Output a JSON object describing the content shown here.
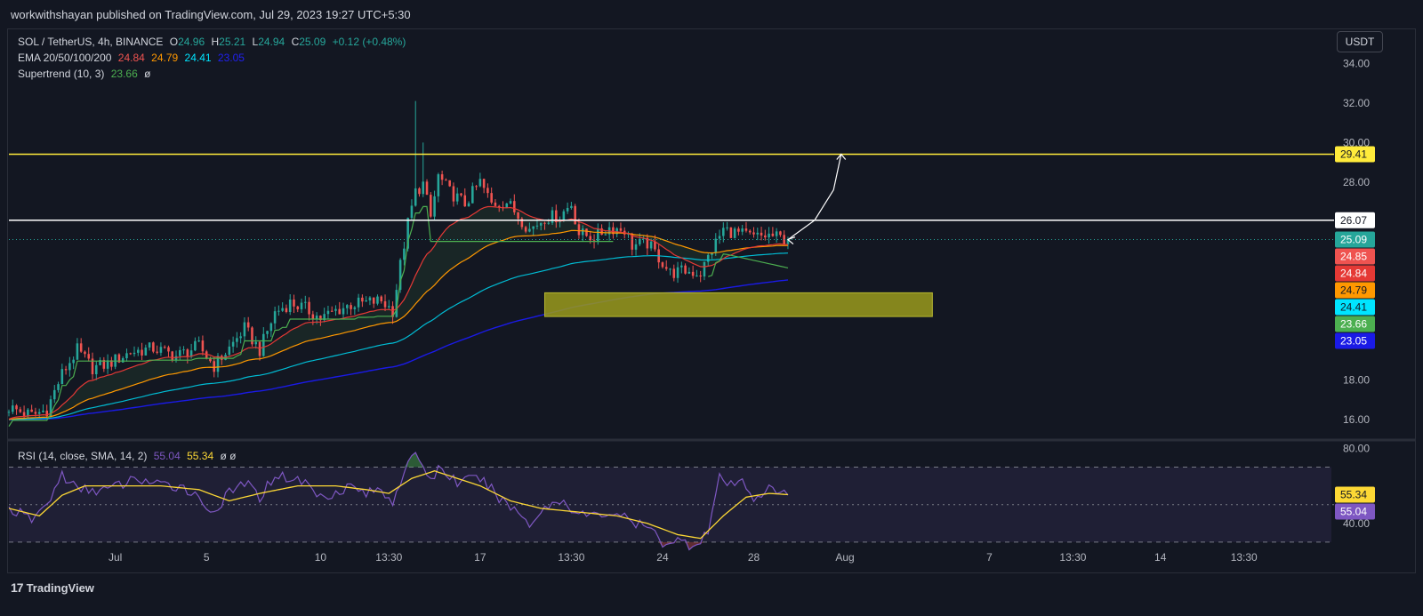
{
  "header": {
    "published": "workwithshayan published on TradingView.com, Jul 29, 2023 19:27 UTC+5:30"
  },
  "legend": {
    "symbol": "SOL / TetherUS, 4h, BINANCE",
    "o_label": "O",
    "o": "24.96",
    "h_label": "H",
    "h": "25.21",
    "l_label": "L",
    "l": "24.94",
    "c_label": "C",
    "c": "25.09",
    "change": "+0.12 (+0.48%)",
    "ema_label": "EMA 20/50/100/200",
    "ema20": "24.84",
    "ema50": "24.79",
    "ema100": "24.41",
    "ema200": "23.05",
    "supertrend_label": "Supertrend (10, 3)",
    "supertrend": "23.66",
    "eye_icon": "ø"
  },
  "rsi_legend": {
    "label": "RSI (14, close, SMA, 14, 2)",
    "rsi": "55.04",
    "sma": "55.34",
    "icons": "ø ø"
  },
  "currency_button": "USDT",
  "footer": {
    "brand": "TradingView",
    "logo_text": "17"
  },
  "colors": {
    "bg": "#131722",
    "up": "#26a69a",
    "down": "#ef5350",
    "ema20": "#e53935",
    "ema50": "#ff9800",
    "ema100": "#00bcd4",
    "ema200": "#1a1ae6",
    "supertrend": "#4caf50",
    "yellow": "#ffeb3b",
    "white": "#ffffff",
    "zone": "#9a9a1c",
    "rsi": "#7e57c2",
    "rsi_sma": "#fdd835"
  },
  "chart_data": [
    {
      "type": "candlestick",
      "symbol": "SOL / TetherUS",
      "interval": "4h",
      "exchange": "BINANCE",
      "ylim": [
        15.0,
        35.5
      ],
      "y_ticks": [
        "16.00",
        "18.00",
        "28.00",
        "30.00",
        "32.00",
        "34.00"
      ],
      "x_ticks": [
        {
          "t": 28,
          "label": "Jul"
        },
        {
          "t": 52,
          "label": "5"
        },
        {
          "t": 82,
          "label": "10"
        },
        {
          "t": 100,
          "label": "13:30"
        },
        {
          "t": 124,
          "label": "17"
        },
        {
          "t": 148,
          "label": "13:30"
        },
        {
          "t": 172,
          "label": "24"
        },
        {
          "t": 196,
          "label": "28"
        },
        {
          "t": 220,
          "label": "Aug"
        },
        {
          "t": 258,
          "label": "7"
        },
        {
          "t": 280,
          "label": "13:30"
        },
        {
          "t": 303,
          "label": "14"
        },
        {
          "t": 325,
          "label": "13:30"
        }
      ],
      "x_range": [
        0,
        348
      ],
      "last_index": 205,
      "price_anchors": [
        [
          0,
          16.6
        ],
        [
          6,
          16.2
        ],
        [
          10,
          16.5
        ],
        [
          14,
          18.3
        ],
        [
          18,
          19.5
        ],
        [
          22,
          18.6
        ],
        [
          26,
          18.8
        ],
        [
          32,
          19.4
        ],
        [
          38,
          19.6
        ],
        [
          44,
          19.2
        ],
        [
          50,
          19.7
        ],
        [
          54,
          18.7
        ],
        [
          58,
          19.6
        ],
        [
          62,
          20.6
        ],
        [
          66,
          19.5
        ],
        [
          70,
          21.4
        ],
        [
          74,
          21.9
        ],
        [
          78,
          21.6
        ],
        [
          82,
          21.1
        ],
        [
          86,
          21.5
        ],
        [
          90,
          21.8
        ],
        [
          94,
          21.9
        ],
        [
          98,
          22.0
        ],
        [
          101,
          21.5
        ],
        [
          103,
          23.8
        ],
        [
          105,
          25.9
        ],
        [
          107,
          27.5
        ],
        [
          109,
          27.9
        ],
        [
          111,
          26.2
        ],
        [
          113,
          28.3
        ],
        [
          116,
          27.5
        ],
        [
          120,
          26.9
        ],
        [
          124,
          28.0
        ],
        [
          127,
          26.9
        ],
        [
          131,
          27.0
        ],
        [
          134,
          26.3
        ],
        [
          137,
          25.6
        ],
        [
          141,
          26.2
        ],
        [
          145,
          26.3
        ],
        [
          148,
          26.9
        ],
        [
          150,
          25.4
        ],
        [
          154,
          25.2
        ],
        [
          158,
          25.7
        ],
        [
          162,
          25.6
        ],
        [
          164,
          24.8
        ],
        [
          168,
          24.9
        ],
        [
          171,
          24.2
        ],
        [
          174,
          23.4
        ],
        [
          178,
          23.5
        ],
        [
          182,
          23.4
        ],
        [
          185,
          24.6
        ],
        [
          188,
          25.6
        ],
        [
          192,
          25.4
        ],
        [
          196,
          25.2
        ],
        [
          200,
          25.3
        ],
        [
          205,
          25.09
        ]
      ],
      "spikes": [
        {
          "index": 107,
          "high": 32.1
        },
        {
          "index": 109,
          "high": 30.0
        }
      ],
      "ema_last": {
        "ema20": 24.84,
        "ema50": 24.79,
        "ema100": 24.41,
        "ema200": 23.05
      },
      "supertrend_last": 23.66,
      "current_price": 25.09,
      "horizontal_lines": [
        {
          "name": "resistance-yellow",
          "price": 29.41,
          "label": "29.41"
        },
        {
          "name": "resistance-white",
          "price": 26.07,
          "label": "26.07"
        }
      ],
      "zone": {
        "price_top": 22.4,
        "price_bottom": 21.2,
        "t_start": 141,
        "t_end": 243
      },
      "projection_arrow": [
        [
          205,
          25.09
        ],
        [
          212,
          26.07
        ],
        [
          217,
          27.6
        ],
        [
          219,
          29.41
        ]
      ],
      "price_labels": [
        {
          "price": 29.41,
          "label": "29.41",
          "bg": "#ffeb3b",
          "fg": "#131722"
        },
        {
          "price": 26.07,
          "label": "26.07",
          "bg": "#ffffff",
          "fg": "#131722"
        },
        {
          "price": 25.09,
          "label": "25.09",
          "bg": "#26a69a",
          "fg": "#ffffff"
        },
        {
          "price": 24.85,
          "label": "24.85",
          "bg": "#ef5350",
          "fg": "#ffffff"
        },
        {
          "price": 24.84,
          "label": "24.84",
          "bg": "#e53935",
          "fg": "#ffffff"
        },
        {
          "price": 24.79,
          "label": "24.79",
          "bg": "#ff9800",
          "fg": "#131722"
        },
        {
          "price": 24.41,
          "label": "24.41",
          "bg": "#00e5ff",
          "fg": "#131722"
        },
        {
          "price": 23.66,
          "label": "23.66",
          "bg": "#4caf50",
          "fg": "#ffffff"
        },
        {
          "price": 23.05,
          "label": "23.05",
          "bg": "#1a1ae6",
          "fg": "#ffffff"
        }
      ]
    },
    {
      "type": "line",
      "name": "RSI (14, close, SMA, 14, 2)",
      "ylim": [
        29,
        84
      ],
      "y_ticks": [
        "40.00",
        "80.00"
      ],
      "bands": [
        70,
        50,
        30
      ],
      "rsi_anchors": [
        [
          0,
          48
        ],
        [
          6,
          42
        ],
        [
          10,
          50
        ],
        [
          14,
          66
        ],
        [
          18,
          58
        ],
        [
          26,
          58
        ],
        [
          34,
          64
        ],
        [
          40,
          60
        ],
        [
          46,
          60
        ],
        [
          54,
          46
        ],
        [
          58,
          56
        ],
        [
          62,
          62
        ],
        [
          66,
          54
        ],
        [
          70,
          66
        ],
        [
          78,
          62
        ],
        [
          82,
          54
        ],
        [
          90,
          60
        ],
        [
          94,
          56
        ],
        [
          98,
          58
        ],
        [
          101,
          52
        ],
        [
          104,
          68
        ],
        [
          107,
          76
        ],
        [
          109,
          72
        ],
        [
          111,
          62
        ],
        [
          113,
          70
        ],
        [
          118,
          62
        ],
        [
          124,
          64
        ],
        [
          130,
          52
        ],
        [
          134,
          46
        ],
        [
          137,
          40
        ],
        [
          142,
          50
        ],
        [
          146,
          52
        ],
        [
          150,
          45
        ],
        [
          154,
          44
        ],
        [
          160,
          46
        ],
        [
          164,
          40
        ],
        [
          168,
          38
        ],
        [
          172,
          30
        ],
        [
          176,
          31
        ],
        [
          180,
          28
        ],
        [
          184,
          36
        ],
        [
          187,
          64
        ],
        [
          190,
          60
        ],
        [
          193,
          62
        ],
        [
          196,
          54
        ],
        [
          200,
          58
        ],
        [
          205,
          55.04
        ]
      ],
      "sma_anchors": [
        [
          0,
          48
        ],
        [
          8,
          44
        ],
        [
          14,
          55
        ],
        [
          20,
          60
        ],
        [
          30,
          60
        ],
        [
          40,
          60
        ],
        [
          50,
          58
        ],
        [
          58,
          52
        ],
        [
          66,
          56
        ],
        [
          76,
          60
        ],
        [
          86,
          60
        ],
        [
          94,
          58
        ],
        [
          100,
          56
        ],
        [
          106,
          64
        ],
        [
          112,
          68
        ],
        [
          118,
          64
        ],
        [
          124,
          60
        ],
        [
          132,
          52
        ],
        [
          140,
          48
        ],
        [
          150,
          46
        ],
        [
          160,
          44
        ],
        [
          168,
          40
        ],
        [
          176,
          34
        ],
        [
          182,
          32
        ],
        [
          188,
          44
        ],
        [
          194,
          54
        ],
        [
          200,
          56
        ],
        [
          205,
          55.34
        ]
      ],
      "rsi_last": 55.04,
      "sma_last": 55.34,
      "labels": [
        {
          "value": 55.34,
          "label": "55.34",
          "bg": "#fdd835",
          "fg": "#131722"
        },
        {
          "value": 55.04,
          "label": "55.04",
          "bg": "#7e57c2",
          "fg": "#ffffff"
        }
      ]
    }
  ]
}
